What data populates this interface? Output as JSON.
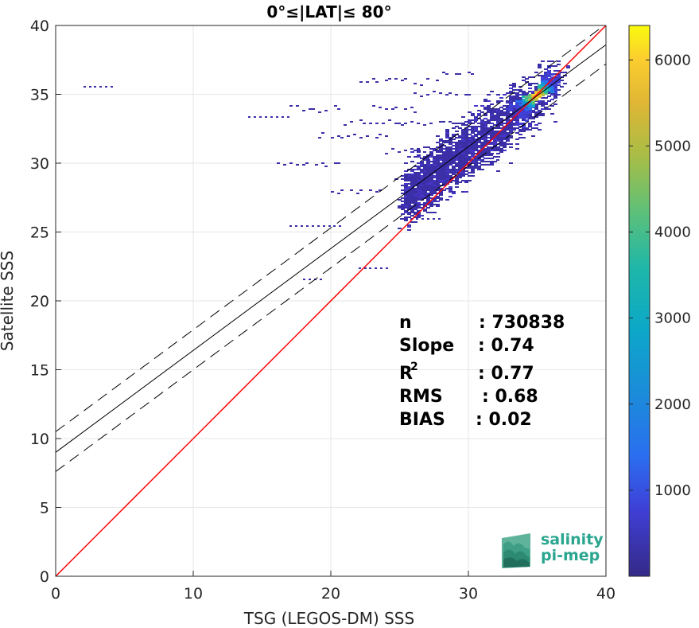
{
  "chart_data": {
    "type": "heatmap",
    "title": "0°≤|LAT|≤ 80°",
    "xlabel": "TSG (LEGOS-DM) SSS",
    "ylabel": "Satellite SSS",
    "xlim": [
      0,
      40
    ],
    "ylim": [
      0,
      40
    ],
    "xticks": [
      "0",
      "10",
      "20",
      "30",
      "40"
    ],
    "yticks": [
      "0",
      "5",
      "10",
      "15",
      "20",
      "25",
      "30",
      "35",
      "40"
    ],
    "grid": true,
    "colorbar": {
      "range": [
        0,
        6400
      ],
      "ticks": [
        "1000",
        "2000",
        "3000",
        "4000",
        "5000",
        "6000"
      ],
      "colormap": "parula"
    },
    "density_core": {
      "x": 34.8,
      "y": 35.0,
      "max_count": 6400
    },
    "lines": [
      {
        "kind": "identity",
        "color": "#ff0000",
        "slope": 1.0,
        "intercept": 0
      },
      {
        "kind": "regression",
        "color": "#000000",
        "slope": 0.74,
        "intercept": 9.0
      },
      {
        "kind": "regression-upper",
        "color": "#000000",
        "dashed": true,
        "slope": 0.74,
        "intercept": 10.5
      },
      {
        "kind": "regression-lower",
        "color": "#000000",
        "dashed": true,
        "slope": 0.74,
        "intercept": 7.6
      }
    ],
    "stats": [
      {
        "name": "n",
        "value": ": 730838"
      },
      {
        "name": "Slope",
        "value": ": 0.74"
      },
      {
        "name": "R",
        "sup": "2",
        "value": ": 0.77"
      },
      {
        "name": "RMS",
        "value": ": 0.68"
      },
      {
        "name": "BIAS",
        "value": ": 0.02"
      }
    ]
  },
  "logo": {
    "line1": "salinity",
    "line2": "pi-mep",
    "color": "#2aa58f"
  }
}
